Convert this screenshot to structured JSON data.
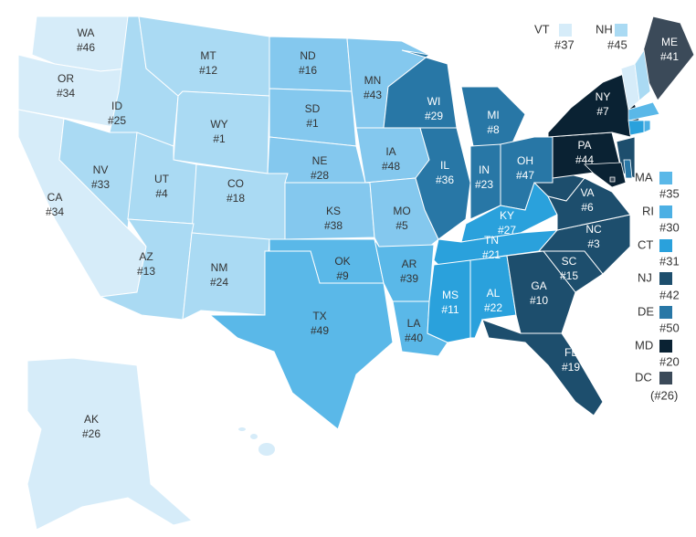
{
  "states": [
    {
      "abbr": "WA",
      "rank": "#46",
      "color": "#d6ecf9"
    },
    {
      "abbr": "OR",
      "rank": "#34",
      "color": "#d6ecf9"
    },
    {
      "abbr": "CA",
      "rank": "#34",
      "color": "#d6ecf9"
    },
    {
      "abbr": "ID",
      "rank": "#25",
      "color": "#aadaf3"
    },
    {
      "abbr": "MT",
      "rank": "#12",
      "color": "#aadaf3"
    },
    {
      "abbr": "WY",
      "rank": "#1",
      "color": "#aadaf3"
    },
    {
      "abbr": "NV",
      "rank": "#33",
      "color": "#aadaf3"
    },
    {
      "abbr": "UT",
      "rank": "#4",
      "color": "#aadaf3"
    },
    {
      "abbr": "CO",
      "rank": "#18",
      "color": "#aadaf3"
    },
    {
      "abbr": "AZ",
      "rank": "#13",
      "color": "#aadaf3"
    },
    {
      "abbr": "NM",
      "rank": "#24",
      "color": "#aadaf3"
    },
    {
      "abbr": "ND",
      "rank": "#16",
      "color": "#84c8ee"
    },
    {
      "abbr": "SD",
      "rank": "#1",
      "color": "#84c8ee"
    },
    {
      "abbr": "NE",
      "rank": "#28",
      "color": "#84c8ee"
    },
    {
      "abbr": "KS",
      "rank": "#38",
      "color": "#84c8ee"
    },
    {
      "abbr": "OK",
      "rank": "#9",
      "color": "#5ab8e8"
    },
    {
      "abbr": "TX",
      "rank": "#49",
      "color": "#5ab8e8"
    },
    {
      "abbr": "MN",
      "rank": "#43",
      "color": "#84c8ee"
    },
    {
      "abbr": "IA",
      "rank": "#48",
      "color": "#84c8ee"
    },
    {
      "abbr": "MO",
      "rank": "#5",
      "color": "#84c8ee"
    },
    {
      "abbr": "AR",
      "rank": "#39",
      "color": "#5ab8e8"
    },
    {
      "abbr": "LA",
      "rank": "#40",
      "color": "#5ab8e8"
    },
    {
      "abbr": "WI",
      "rank": "#29",
      "color": "#2877a6"
    },
    {
      "abbr": "MI",
      "rank": "#8",
      "color": "#2877a6"
    },
    {
      "abbr": "IL",
      "rank": "#36",
      "color": "#2877a6"
    },
    {
      "abbr": "IN",
      "rank": "#23",
      "color": "#2877a6"
    },
    {
      "abbr": "OH",
      "rank": "#47",
      "color": "#2877a6"
    },
    {
      "abbr": "KY",
      "rank": "#27",
      "color": "#2aa1dc"
    },
    {
      "abbr": "TN",
      "rank": "#21",
      "color": "#2aa1dc"
    },
    {
      "abbr": "MS",
      "rank": "#11",
      "color": "#2aa1dc"
    },
    {
      "abbr": "AL",
      "rank": "#22",
      "color": "#2aa1dc"
    },
    {
      "abbr": "GA",
      "rank": "#10",
      "color": "#1d4e6d"
    },
    {
      "abbr": "FL",
      "rank": "#19",
      "color": "#1d4e6d"
    },
    {
      "abbr": "SC",
      "rank": "#15",
      "color": "#1d4e6d"
    },
    {
      "abbr": "NC",
      "rank": "#3",
      "color": "#1d4e6d"
    },
    {
      "abbr": "VA",
      "rank": "#6",
      "color": "#1d4e6d"
    },
    {
      "abbr": "PA",
      "rank": "#44",
      "color": "#0a2233"
    },
    {
      "abbr": "NY",
      "rank": "#7",
      "color": "#0a2233"
    },
    {
      "abbr": "ME",
      "rank": "#41",
      "color": "#3b4a59"
    },
    {
      "abbr": "AK",
      "rank": "#26",
      "color": "#d6ecf9"
    }
  ],
  "legend": [
    {
      "abbr": "VT",
      "rank": "#37",
      "color": "#d6ecf9"
    },
    {
      "abbr": "NH",
      "rank": "#45",
      "color": "#aadaf3"
    },
    {
      "abbr": "MA",
      "rank": "#35",
      "color": "#5ab8e8"
    },
    {
      "abbr": "RI",
      "rank": "#30",
      "color": "#4cb0e4"
    },
    {
      "abbr": "CT",
      "rank": "#31",
      "color": "#2aa1dc"
    },
    {
      "abbr": "NJ",
      "rank": "#42",
      "color": "#1d4e6d"
    },
    {
      "abbr": "DE",
      "rank": "#50",
      "color": "#2877a6"
    },
    {
      "abbr": "MD",
      "rank": "#20",
      "color": "#0a2233"
    },
    {
      "abbr": "DC",
      "rank": "(#26)",
      "color": "#3b4a59"
    }
  ]
}
